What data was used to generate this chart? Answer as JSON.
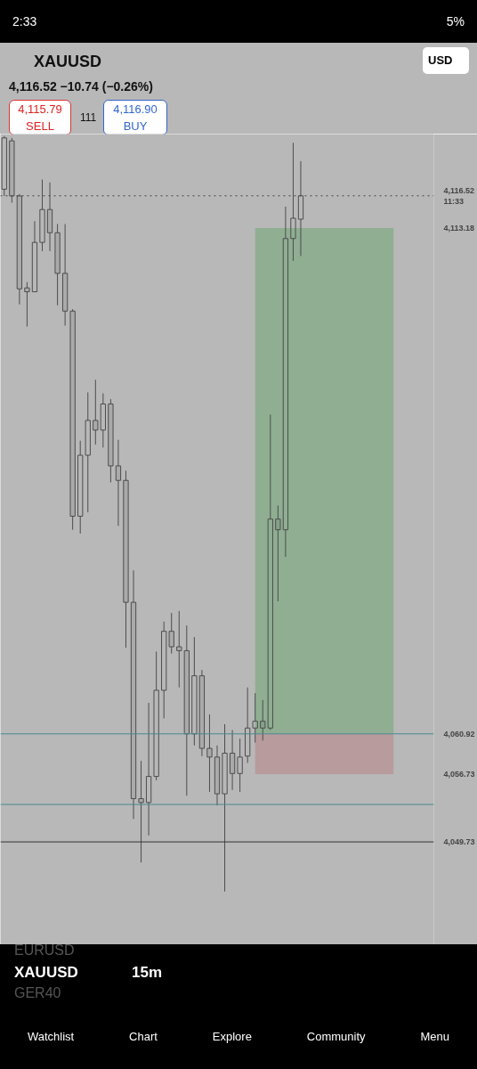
{
  "chart_data": {
    "type": "candlestick",
    "title": "XAUUSD",
    "subtitle": "4,116.52   −10.74 (−0.26%)",
    "categories": [
      null,
      null,
      null,
      null,
      null,
      null,
      null,
      null,
      null,
      null,
      null,
      null,
      null,
      null,
      null,
      null,
      null,
      null,
      null,
      null,
      null,
      null,
      null,
      null,
      null,
      null,
      null,
      null,
      null,
      null,
      null,
      null,
      null,
      null,
      null,
      null,
      null,
      null,
      null,
      null,
      null,
      null,
      null,
      null,
      null,
      null,
      null,
      null,
      null,
      null,
      null,
      null,
      null,
      null,
      null,
      null,
      null
    ],
    "ohlc": [
      [
        4117.2,
        4122.7,
        4116.5,
        4122.5
      ],
      [
        4122.2,
        4122.5,
        4115.8,
        4116.5
      ],
      [
        4116.5,
        4116.7,
        4105.3,
        4106.9
      ],
      [
        4107.0,
        4107.6,
        4103.0,
        4106.6
      ],
      [
        4106.6,
        4113.9,
        4106.6,
        4111.7
      ],
      [
        4111.7,
        4118.2,
        4110.8,
        4115.1
      ],
      [
        4115.1,
        4117.9,
        4110.8,
        4112.7
      ],
      [
        4112.7,
        4113.6,
        4105.2,
        4108.5
      ],
      [
        4108.5,
        4113.6,
        4103.1,
        4104.6
      ],
      [
        4104.6,
        4104.8,
        4082.0,
        4083.4
      ],
      [
        4083.4,
        4091.2,
        4081.6,
        4089.7
      ],
      [
        4089.7,
        4096.2,
        4083.8,
        4093.3
      ],
      [
        4093.3,
        4097.5,
        4090.8,
        4092.3
      ],
      [
        4092.3,
        4096.1,
        4090.5,
        4095.0
      ],
      [
        4095.0,
        4095.5,
        4086.9,
        4088.6
      ],
      [
        4088.6,
        4091.3,
        4082.4,
        4087.1
      ],
      [
        4087.1,
        4088.1,
        4069.8,
        4074.5
      ],
      [
        4074.5,
        4077.8,
        4052.1,
        4054.2
      ],
      [
        4054.2,
        4058.1,
        4047.6,
        4053.8
      ],
      [
        4053.8,
        4064.1,
        4050.4,
        4056.5
      ],
      [
        4056.5,
        4069.4,
        4056.1,
        4065.4
      ],
      [
        4065.4,
        4072.5,
        4062.5,
        4071.5
      ],
      [
        4071.5,
        4073.4,
        4069.2,
        4069.9
      ],
      [
        4069.9,
        4073.6,
        4065.7,
        4069.5
      ],
      [
        4069.5,
        4072.1,
        4054.5,
        4060.9
      ],
      [
        4060.9,
        4070.9,
        4059.7,
        4066.9
      ],
      [
        4066.9,
        4067.5,
        4058.6,
        4059.4
      ],
      [
        4059.4,
        4062.9,
        4054.9,
        4058.5
      ],
      [
        4058.5,
        4059.7,
        4053.5,
        4054.7
      ],
      [
        4054.7,
        4061.9,
        4044.6,
        4058.9
      ],
      [
        4058.9,
        4061.3,
        4055.1,
        4056.8
      ],
      [
        4056.8,
        4060.4,
        4054.9,
        4058.5
      ],
      [
        4058.6,
        4065.7,
        4057.9,
        4061.5
      ],
      [
        4061.5,
        4065.1,
        4060.0,
        4062.2
      ],
      [
        4062.2,
        4064.4,
        4060.2,
        4061.5
      ],
      [
        4061.5,
        4093.9,
        4061.3,
        4083.1
      ],
      [
        4083.1,
        4084.5,
        4074.6,
        4082.0
      ],
      [
        4082.0,
        4115.4,
        4079.2,
        4112.1
      ],
      [
        4112.1,
        4122.0,
        4109.8,
        4114.2
      ],
      [
        4114.1,
        4120.1,
        4110.3,
        4116.52
      ],
      null,
      null,
      null,
      null,
      null,
      null,
      null,
      null,
      null,
      null,
      null,
      null,
      null,
      null,
      null,
      null,
      null
    ],
    "ylim": [
      4039.1,
      4122.9
    ],
    "yticks": [
      {
        "value": 4116.52,
        "label": "4,116.52\n11:33"
      },
      {
        "value": 4113.18,
        "label": "4,113.18"
      },
      {
        "value": 4060.92,
        "label": "4,060.92"
      },
      {
        "value": 4056.73,
        "label": "4,056.73"
      },
      {
        "value": 4049.73,
        "label": "4,049.73"
      }
    ],
    "tick_labels": "y",
    "grid": false,
    "ref_lines": [
      {
        "axis": "y",
        "value": 4116.52,
        "color": "#444444",
        "line_style": "dotted"
      },
      {
        "axis": "y",
        "value": 4049.73,
        "color": "#333333",
        "line_style": "solid"
      },
      {
        "axis": "y",
        "value": 4060.9,
        "color": "#4a8a8f",
        "line_style": "solid"
      },
      {
        "axis": "y",
        "value": 4053.6,
        "color": "#4a8a8f",
        "line_style": "solid"
      }
    ],
    "bands": [
      {
        "axis": "y",
        "from": 4060.92,
        "to": 4113.18,
        "color": "#8fae92"
      },
      {
        "axis": "y",
        "from": 4056.73,
        "to": 4060.92,
        "color": "#b89b9d"
      }
    ],
    "annotations": [
      "2:33",
      "5%",
      "4,115.79",
      "SELL",
      "111",
      "4,116.90",
      "BUY",
      "USD",
      "EURUSD",
      "XAUUSD",
      "15m",
      "GER40",
      "Watchlist",
      "Chart",
      "Explore",
      "Community",
      "Menu"
    ]
  }
}
